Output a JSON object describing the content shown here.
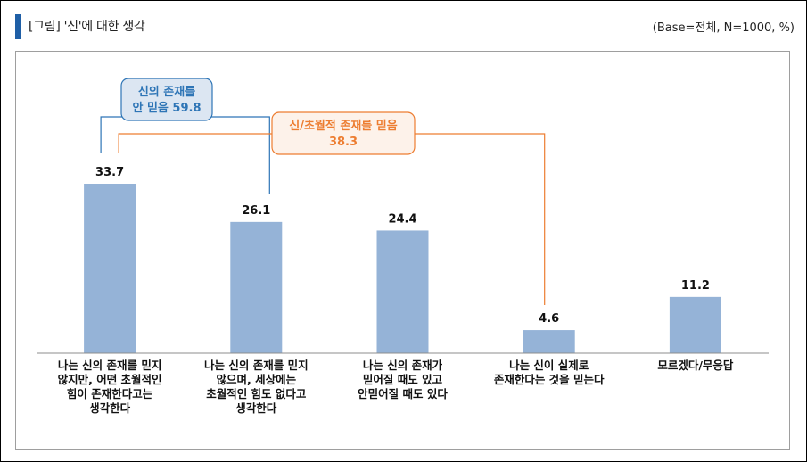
{
  "header": {
    "title": "[그림] '신'에 대한 생각",
    "base_note": "(Base=전체, N=1000, %)"
  },
  "colors": {
    "bar": "#95b3d7",
    "accent": "#1f5fa6",
    "blue_callout_stroke": "#2e75b6",
    "blue_callout_fill": "#dce6f2",
    "blue_callout_text": "#2e75b6",
    "orange_callout_stroke": "#ed7d31",
    "orange_callout_fill": "#fdf2ea",
    "orange_callout_text": "#ed7d31"
  },
  "chart_data": {
    "type": "bar",
    "categories": [
      "나는 신의 존재를 믿지 않지만, 어떤 초월적인 힘이 존재한다고는 생각한다",
      "나는 신의 존재를 믿지 않으며, 세상에는 초월적인 힘도 없다고 생각한다",
      "나는 신의 존재가 믿어질 때도 있고 안믿어질 때도 있다",
      "나는 신이 실제로 존재한다는 것을 믿는다",
      "모르겠다/무응답"
    ],
    "category_lines": [
      [
        "나는 신의 존재를 믿지",
        "않지만, 어떤 초월적인",
        "힘이 존재한다고는",
        "생각한다"
      ],
      [
        "나는 신의 존재를 믿지",
        "않으며, 세상에는",
        "초월적인 힘도 없다고",
        "생각한다"
      ],
      [
        "나는 신의 존재가",
        "믿어질 때도 있고",
        "안믿어질 때도 있다"
      ],
      [
        "나는 신이 실제로",
        "존재한다는 것을 믿는다"
      ],
      [
        "모르겠다/무응답"
      ]
    ],
    "values": [
      33.7,
      26.1,
      24.4,
      4.6,
      11.2
    ],
    "value_labels": [
      "33.7",
      "26.1",
      "24.4",
      "4.6",
      "11.2"
    ],
    "ylim": [
      0,
      40
    ],
    "grid": false,
    "annotations": [
      {
        "lines": [
          "신의 존재를",
          "안 믿음 59.8"
        ],
        "spans": [
          0,
          1
        ],
        "color": "blue"
      },
      {
        "lines": [
          "신/초월적 존재를 믿음",
          "38.3"
        ],
        "spans": [
          0,
          3
        ],
        "color": "orange"
      }
    ]
  }
}
